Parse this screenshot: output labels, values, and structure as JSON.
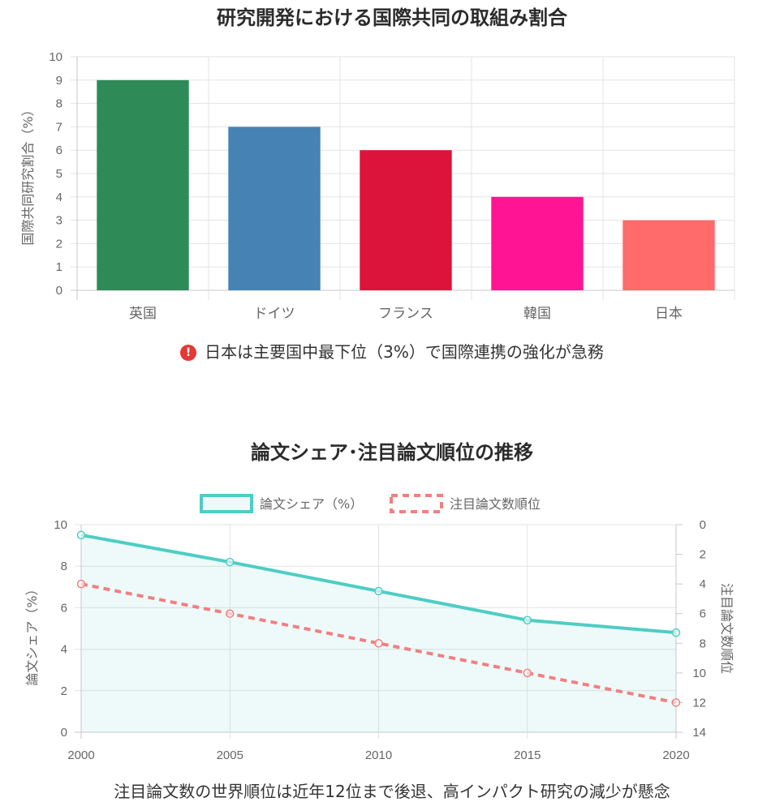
{
  "chart_data": [
    {
      "type": "bar",
      "title": "研究開発における国際共同の取組み割合",
      "ylabel": "国際共同研究割合（%）",
      "xlabel": "",
      "categories": [
        "英国",
        "ドイツ",
        "フランス",
        "韓国",
        "日本"
      ],
      "values": [
        9,
        7,
        6,
        4,
        3
      ],
      "colors": [
        "#2e8b57",
        "#4682b4",
        "#dc143c",
        "#ff1493",
        "#ff6a6a"
      ],
      "ylim": [
        0,
        10
      ],
      "yticks": [
        "0",
        "1",
        "2",
        "3",
        "4",
        "5",
        "6",
        "7",
        "8",
        "9",
        "10"
      ],
      "grid": true,
      "note": "日本は主要国中最下位（3%）で国際連携の強化が急務",
      "note_icon": "exclamation-circle-icon"
    },
    {
      "type": "line",
      "title": "論文シェア･注目論文順位の推移",
      "x": [
        "2000",
        "2005",
        "2010",
        "2015",
        "2020"
      ],
      "ylabel": "論文シェア（%）",
      "y2label": "注目論文数順位",
      "ylim": [
        0,
        10
      ],
      "y2lim": [
        0,
        14
      ],
      "y2_reversed": true,
      "yticks": [
        "0",
        "2",
        "4",
        "6",
        "8",
        "10"
      ],
      "y2ticks": [
        "0",
        "2",
        "4",
        "6",
        "8",
        "10",
        "12",
        "14"
      ],
      "legend_position": "top",
      "grid": true,
      "series": [
        {
          "name": "論文シェア（%）",
          "axis": "left",
          "values": [
            9.5,
            8.2,
            6.8,
            5.4,
            4.8
          ],
          "color": "#4ecdc4",
          "fill": true,
          "dashed": false
        },
        {
          "name": "注目論文数順位",
          "axis": "right",
          "values": [
            4,
            6,
            8,
            10,
            12
          ],
          "color": "#f08080",
          "fill": false,
          "dashed": true
        }
      ],
      "note": "注目論文数の世界順位は近年12位まで後退、高インパクト研究の減少が懸念"
    }
  ]
}
